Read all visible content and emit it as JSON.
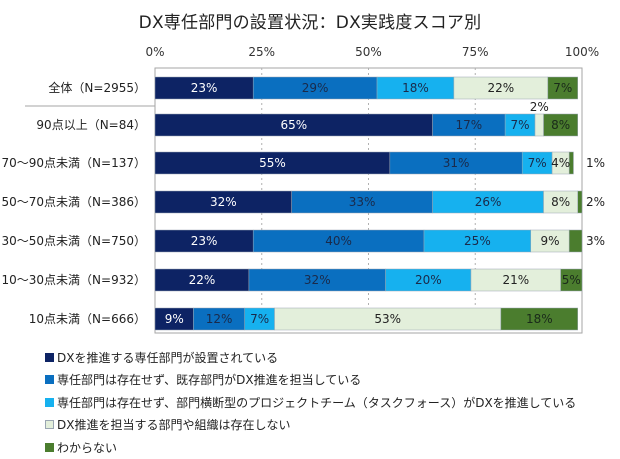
{
  "chart_data": {
    "type": "bar",
    "orientation": "horizontal",
    "stacked": true,
    "title": "DX専任部門の設置状況：DX実践度スコア別",
    "xlabel": "",
    "ylabel": "",
    "xlim": [
      0,
      100
    ],
    "x_ticks": [
      "0%",
      "25%",
      "50%",
      "75%",
      "100%"
    ],
    "x_tick_values": [
      0,
      25,
      50,
      75,
      100
    ],
    "x_axis_position": "top",
    "grid": "vertical dashed",
    "legend_position": "bottom-left",
    "categories": [
      "全体（N=2955）",
      "90点以上（N=84）",
      "70～90点未満（N=137）",
      "50～70点未満（N=386）",
      "30～50点未満（N=750）",
      "10～30点未満（N=932）",
      "10点未満（N=666）"
    ],
    "series": [
      {
        "name": "DXを推進する専任部門が設置されている",
        "color": "#0d2364",
        "label_color": "#ffffff",
        "values": [
          23,
          65,
          55,
          32,
          23,
          22,
          9
        ]
      },
      {
        "name": "専任部門は存在せず、既存部門がDX推進を担当している",
        "color": "#0a6fc0",
        "label_color": "#1a2a4a",
        "values": [
          29,
          17,
          31,
          33,
          40,
          32,
          12
        ]
      },
      {
        "name": "専任部門は存在せず、部門横断型のプロジェクトチーム（タスクフォース）がDXを推進している",
        "color": "#16b1ef",
        "label_color": "#1a2a4a",
        "values": [
          18,
          7,
          7,
          26,
          25,
          20,
          7
        ]
      },
      {
        "name": "DX推進を担当する部門や組織は存在しない",
        "color": "#e3efdb",
        "label_color": "#222222",
        "values": [
          22,
          2,
          4,
          8,
          9,
          21,
          53
        ]
      },
      {
        "name": "わからない",
        "color": "#4b7d2e",
        "label_color": "#1a2a1a",
        "values": [
          7,
          8,
          1,
          2,
          3,
          5,
          18
        ]
      }
    ],
    "data_labels": [
      [
        "23%",
        "29%",
        "18%",
        "22%",
        "7%"
      ],
      [
        "65%",
        "17%",
        "7%",
        "2%",
        "8%"
      ],
      [
        "55%",
        "31%",
        "7%",
        "4%",
        "1%"
      ],
      [
        "32%",
        "33%",
        "26%",
        "8%",
        "2%"
      ],
      [
        "23%",
        "40%",
        "25%",
        "9%",
        "3%"
      ],
      [
        "22%",
        "32%",
        "20%",
        "21%",
        "5%"
      ],
      [
        "9%",
        "12%",
        "7%",
        "53%",
        "18%"
      ]
    ],
    "label_placement_notes": {
      "outside_above": [
        [
          1,
          3
        ]
      ],
      "outside_right": [
        [
          2,
          4
        ],
        [
          3,
          4
        ],
        [
          4,
          4
        ]
      ]
    }
  }
}
